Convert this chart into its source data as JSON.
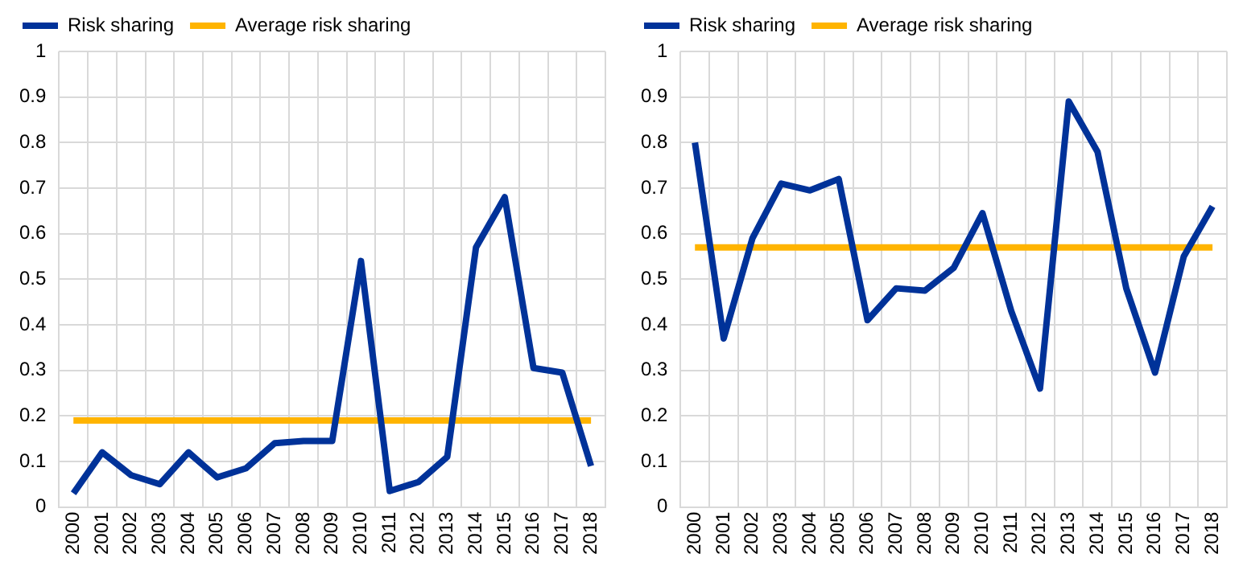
{
  "chart_data": [
    {
      "type": "line",
      "categories": [
        "2000",
        "2001",
        "2002",
        "2003",
        "2004",
        "2005",
        "2006",
        "2007",
        "2008",
        "2009",
        "2010",
        "2011",
        "2012",
        "2013",
        "2014",
        "2015",
        "2016",
        "2017",
        "2018"
      ],
      "series": [
        {
          "name": "Risk sharing",
          "color": "#003299",
          "values": [
            0.03,
            0.12,
            0.07,
            0.05,
            0.12,
            0.065,
            0.085,
            0.14,
            0.145,
            0.145,
            0.54,
            0.035,
            0.055,
            0.11,
            0.57,
            0.68,
            0.305,
            0.295,
            0.09
          ]
        },
        {
          "name": "Average risk sharing",
          "color": "#ffb400",
          "values": [
            0.19,
            0.19,
            0.19,
            0.19,
            0.19,
            0.19,
            0.19,
            0.19,
            0.19,
            0.19,
            0.19,
            0.19,
            0.19,
            0.19,
            0.19,
            0.19,
            0.19,
            0.19,
            0.19
          ]
        }
      ],
      "ylim": [
        0,
        1
      ],
      "yticks": [
        0,
        0.1,
        0.2,
        0.3,
        0.4,
        0.5,
        0.6,
        0.7,
        0.8,
        0.9,
        1
      ],
      "grid": true,
      "legend": "top left",
      "marker": "none",
      "line_style": "solid"
    },
    {
      "type": "line",
      "categories": [
        "2000",
        "2001",
        "2002",
        "2003",
        "2004",
        "2005",
        "2006",
        "2007",
        "2008",
        "2009",
        "2010",
        "2011",
        "2012",
        "2013",
        "2014",
        "2015",
        "2016",
        "2017",
        "2018"
      ],
      "series": [
        {
          "name": "Risk sharing",
          "color": "#003299",
          "values": [
            0.8,
            0.37,
            0.59,
            0.71,
            0.695,
            0.72,
            0.41,
            0.48,
            0.475,
            0.525,
            0.645,
            0.43,
            0.26,
            0.89,
            0.78,
            0.48,
            0.295,
            0.55,
            0.66
          ]
        },
        {
          "name": "Average risk sharing",
          "color": "#ffb400",
          "values": [
            0.57,
            0.57,
            0.57,
            0.57,
            0.57,
            0.57,
            0.57,
            0.57,
            0.57,
            0.57,
            0.57,
            0.57,
            0.57,
            0.57,
            0.57,
            0.57,
            0.57,
            0.57,
            0.57
          ]
        }
      ],
      "ylim": [
        0,
        1
      ],
      "yticks": [
        0,
        0.1,
        0.2,
        0.3,
        0.4,
        0.5,
        0.6,
        0.7,
        0.8,
        0.9,
        1
      ],
      "grid": true,
      "legend": "top left",
      "marker": "none",
      "line_style": "solid"
    }
  ]
}
